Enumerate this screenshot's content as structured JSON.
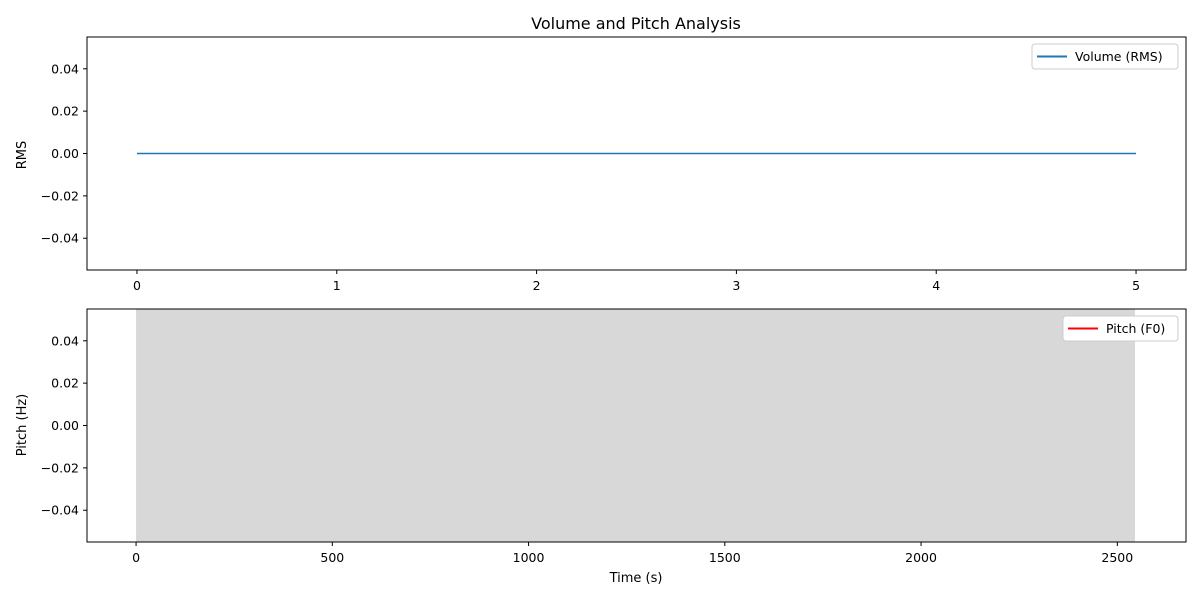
{
  "chart_data": [
    {
      "type": "line",
      "title": "Volume and Pitch Analysis",
      "xlabel": "",
      "ylabel": "RMS",
      "xlim": [
        -0.25,
        5.25
      ],
      "ylim": [
        -0.055,
        0.055
      ],
      "xticks": [
        0,
        1,
        2,
        3,
        4,
        5
      ],
      "xtick_labels": [
        "0",
        "1",
        "2",
        "3",
        "4",
        "5"
      ],
      "yticks": [
        -0.04,
        -0.02,
        0.0,
        0.02,
        0.04
      ],
      "ytick_labels": [
        "−0.04",
        "−0.02",
        "0.00",
        "0.02",
        "0.04"
      ],
      "legend_position": "top-right",
      "grid": false,
      "series": [
        {
          "name": "Volume (RMS)",
          "color": "#1f77b4",
          "x": [
            0,
            5
          ],
          "y": [
            0,
            0
          ]
        }
      ]
    },
    {
      "type": "area",
      "title": "",
      "xlabel": "Time (s)",
      "ylabel": "Pitch (Hz)",
      "xlim": [
        -125,
        2675
      ],
      "ylim": [
        -0.055,
        0.055
      ],
      "xticks": [
        0,
        500,
        1000,
        1500,
        2000,
        2500
      ],
      "xtick_labels": [
        "0",
        "500",
        "1000",
        "1500",
        "2000",
        "2500"
      ],
      "yticks": [
        -0.04,
        -0.02,
        0.0,
        0.02,
        0.04
      ],
      "ytick_labels": [
        "−0.04",
        "−0.02",
        "0.00",
        "0.02",
        "0.04"
      ],
      "legend_position": "top-right",
      "grid": false,
      "shaded_span": {
        "x": [
          0,
          2545
        ],
        "color": "#d8d8d8"
      },
      "series": [
        {
          "name": "Pitch (F0)",
          "color": "#ff0000",
          "x": [],
          "y": []
        }
      ]
    }
  ]
}
